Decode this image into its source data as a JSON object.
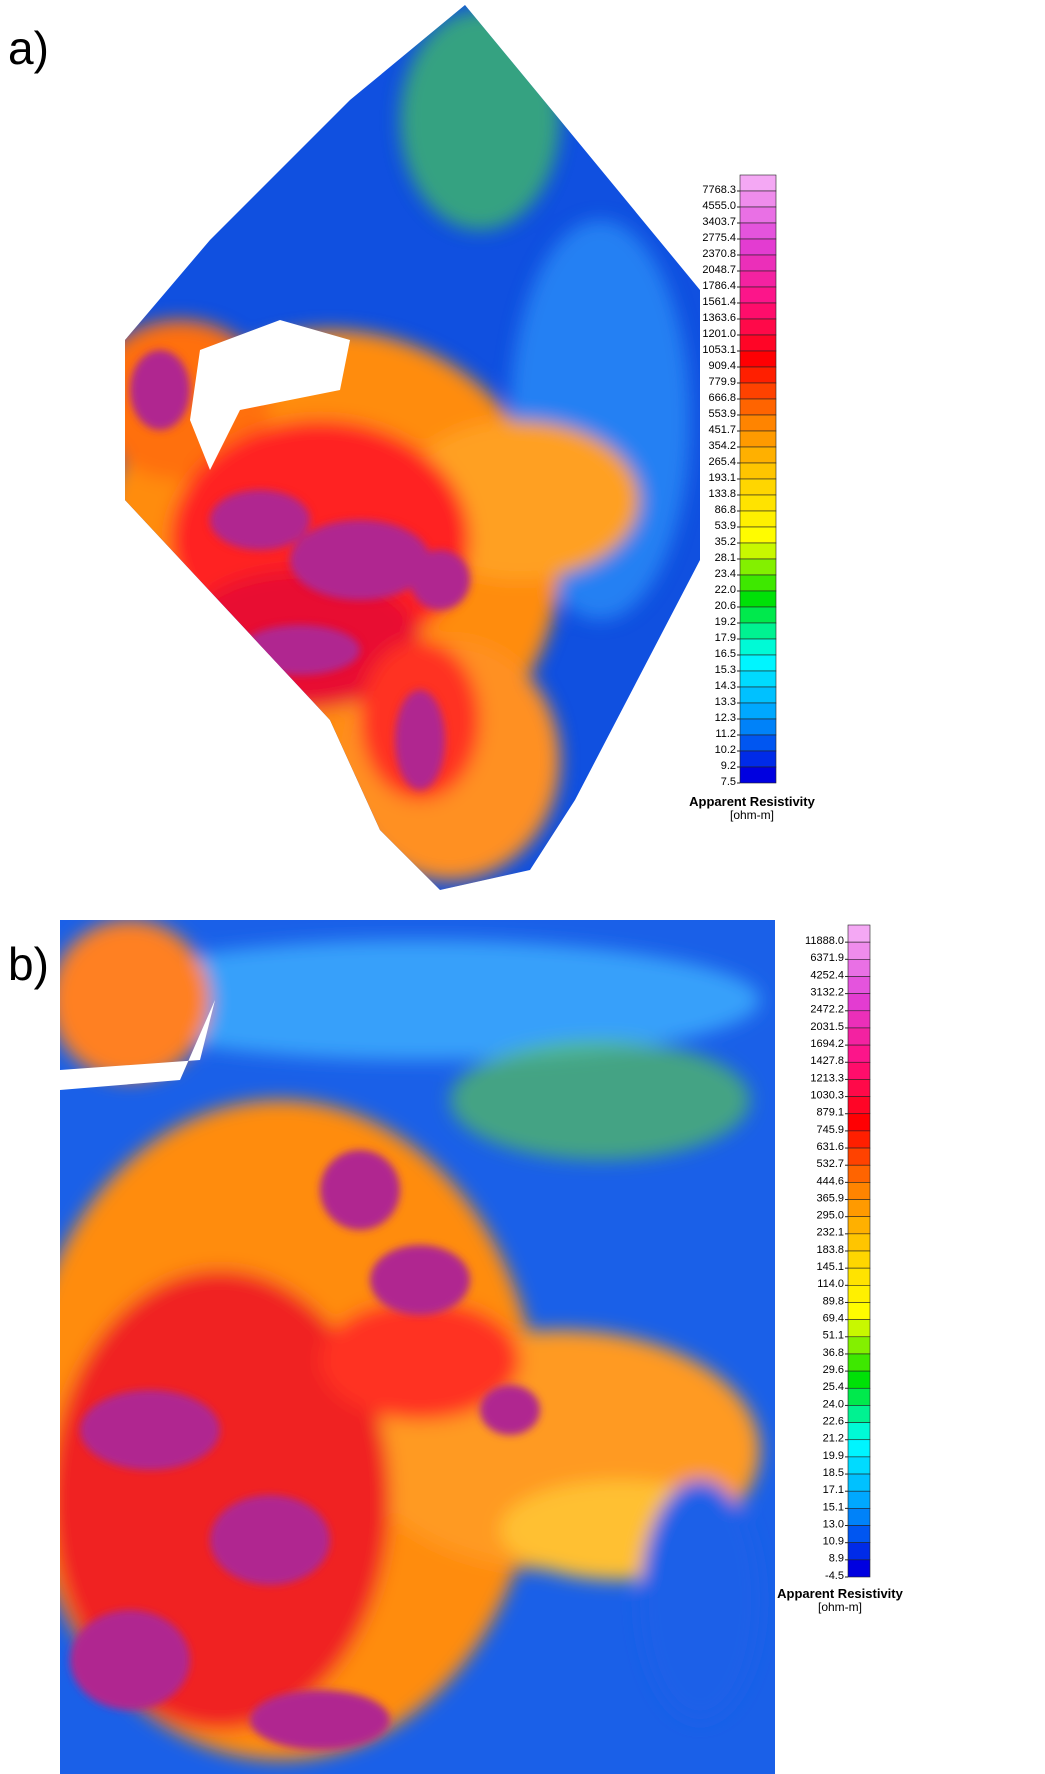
{
  "panels": [
    {
      "label": "a)",
      "legend": {
        "title": "Apparent Resistivity",
        "unit": "[ohm-m]",
        "levels": [
          "7768.3",
          "4555.0",
          "3403.7",
          "2775.4",
          "2370.8",
          "2048.7",
          "1786.4",
          "1561.4",
          "1363.6",
          "1201.0",
          "1053.1",
          "909.4",
          "779.9",
          "666.8",
          "553.9",
          "451.7",
          "354.2",
          "265.4",
          "193.1",
          "133.8",
          "86.8",
          "53.9",
          "35.2",
          "28.1",
          "23.4",
          "22.0",
          "20.6",
          "19.2",
          "17.9",
          "16.5",
          "15.3",
          "14.3",
          "13.3",
          "12.3",
          "11.2",
          "10.2",
          "9.2",
          "7.5"
        ],
        "colors": [
          "#f4a8f4",
          "#e040d8",
          "#ff1080",
          "#ff0000",
          "#ff8000",
          "#ffd000",
          "#ffff00",
          "#00e000",
          "#00ffff",
          "#00a0ff",
          "#0000e0"
        ]
      }
    },
    {
      "label": "b)",
      "legend": {
        "title": "Apparent Resistivity",
        "unit": "[ohm-m]",
        "levels": [
          "11888.0",
          "6371.9",
          "4252.4",
          "3132.2",
          "2472.2",
          "2031.5",
          "1694.2",
          "1427.8",
          "1213.3",
          "1030.3",
          "879.1",
          "745.9",
          "631.6",
          "532.7",
          "444.6",
          "365.9",
          "295.0",
          "232.1",
          "183.8",
          "145.1",
          "114.0",
          "89.8",
          "69.4",
          "51.1",
          "36.8",
          "29.6",
          "25.4",
          "24.0",
          "22.6",
          "21.2",
          "19.9",
          "18.5",
          "17.1",
          "15.1",
          "13.0",
          "10.9",
          "8.9",
          "-4.5"
        ],
        "colors": [
          "#f4a8f4",
          "#e040d8",
          "#ff1080",
          "#ff0000",
          "#ff8000",
          "#ffd000",
          "#ffff00",
          "#00e000",
          "#00ffff",
          "#00a0ff",
          "#0000e0"
        ]
      }
    }
  ]
}
